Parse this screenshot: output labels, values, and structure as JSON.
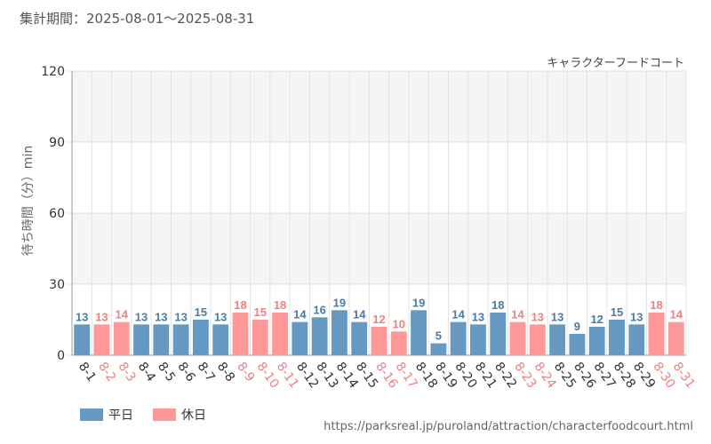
{
  "header": {
    "period_label": "集計期間：2025-08-01～2025-08-31"
  },
  "footer": {
    "source_url": "https://parksreal.jp/puroland/attraction/characterfoodcourt.html"
  },
  "colors": {
    "weekday": "#6699c2",
    "holiday": "#ff9999",
    "weekday_text": "#4a7ba7",
    "holiday_text": "#f08080"
  },
  "chart_data": {
    "type": "bar",
    "title": "キャラクターフードコート",
    "xlabel": "",
    "ylabel": "待ち時間（分）min",
    "ylim": [
      0,
      120
    ],
    "yticks": [
      0,
      30,
      60,
      90,
      120
    ],
    "categories": [
      "8-1",
      "8-2",
      "8-3",
      "8-4",
      "8-5",
      "8-6",
      "8-7",
      "8-8",
      "8-9",
      "8-10",
      "8-11",
      "8-12",
      "8-13",
      "8-14",
      "8-15",
      "8-16",
      "8-17",
      "8-18",
      "8-19",
      "8-20",
      "8-21",
      "8-22",
      "8-23",
      "8-24",
      "8-25",
      "8-26",
      "8-27",
      "8-28",
      "8-29",
      "8-30",
      "8-31"
    ],
    "values": [
      13,
      13,
      14,
      13,
      13,
      13,
      15,
      13,
      18,
      15,
      18,
      14,
      16,
      19,
      14,
      12,
      10,
      19,
      5,
      14,
      13,
      18,
      14,
      13,
      13,
      9,
      12,
      15,
      13,
      18,
      14
    ],
    "day_types": [
      "weekday",
      "holiday",
      "holiday",
      "weekday",
      "weekday",
      "weekday",
      "weekday",
      "weekday",
      "holiday",
      "holiday",
      "holiday",
      "weekday",
      "weekday",
      "weekday",
      "weekday",
      "holiday",
      "holiday",
      "weekday",
      "weekday",
      "weekday",
      "weekday",
      "weekday",
      "holiday",
      "holiday",
      "weekday",
      "weekday",
      "weekday",
      "weekday",
      "weekday",
      "holiday",
      "holiday"
    ],
    "legend": [
      {
        "key": "weekday",
        "label": "平日"
      },
      {
        "key": "holiday",
        "label": "休日"
      }
    ],
    "legend_position": "bottom-left",
    "grid": true
  }
}
